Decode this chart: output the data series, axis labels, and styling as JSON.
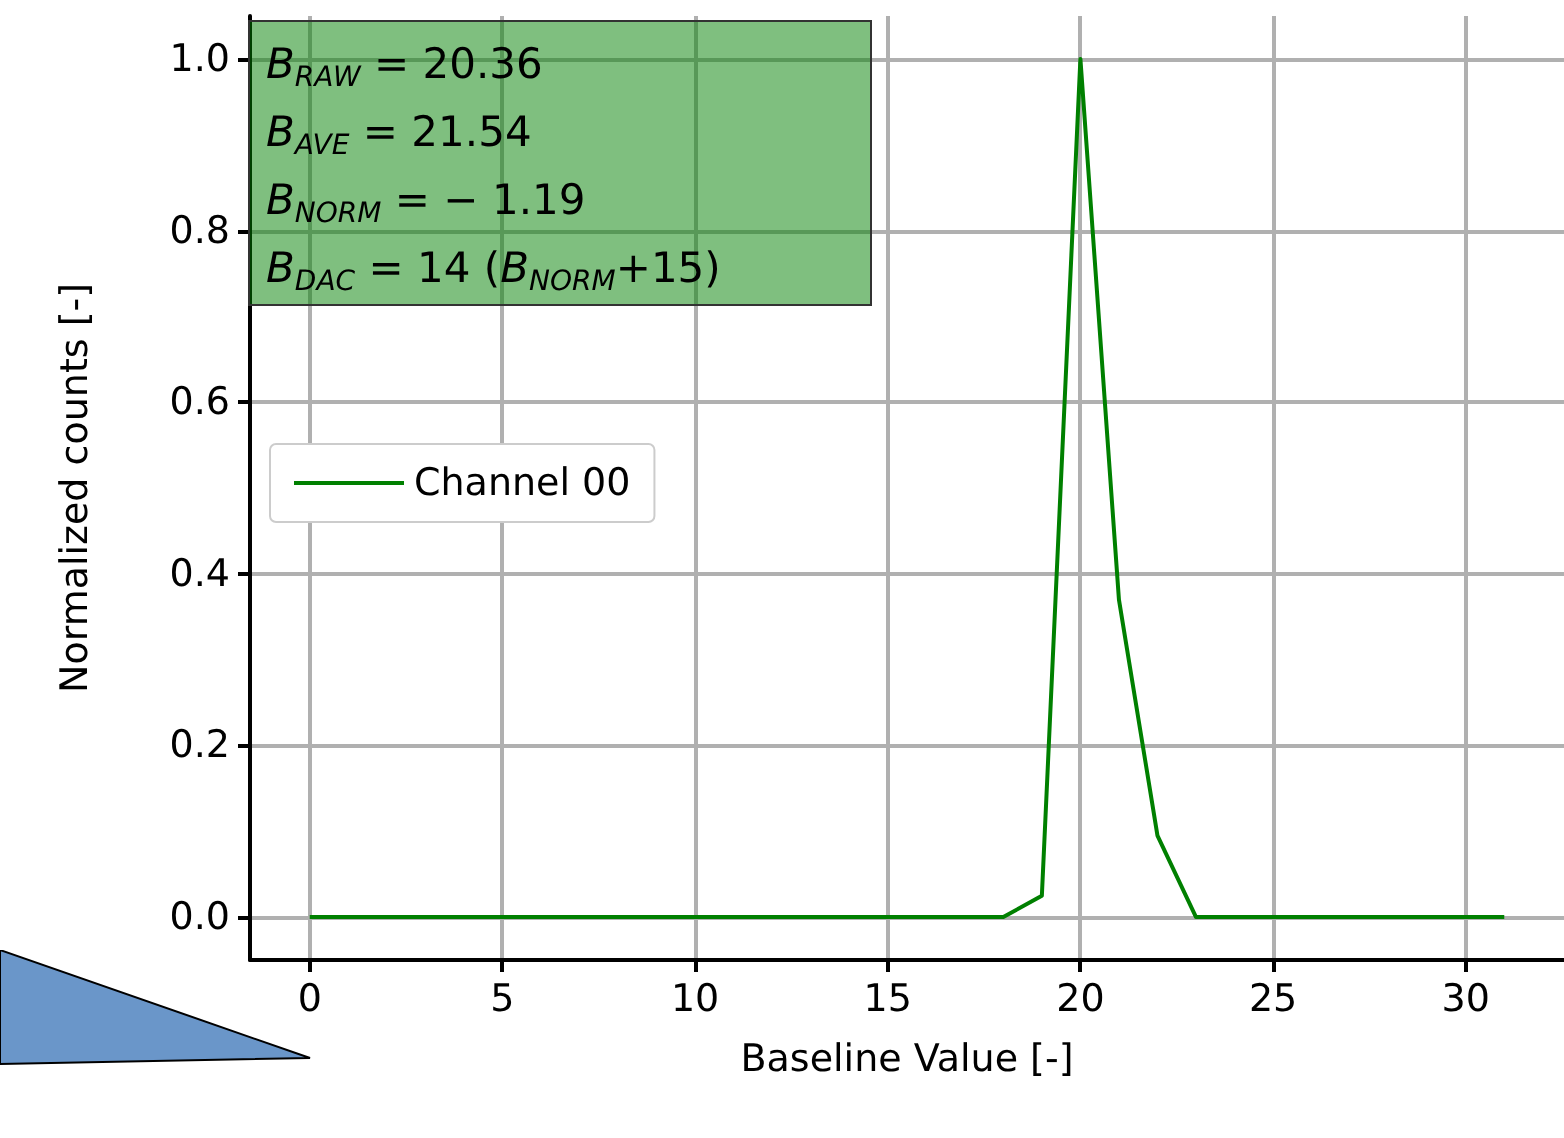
{
  "chart_data": {
    "type": "line",
    "xlabel": "Baseline Value [-]",
    "ylabel": "Normalized counts [-]",
    "x": [
      0,
      1,
      2,
      3,
      4,
      5,
      6,
      7,
      8,
      9,
      10,
      11,
      12,
      13,
      14,
      15,
      16,
      17,
      18,
      19,
      20,
      21,
      22,
      23,
      24,
      25,
      26,
      27,
      28,
      29,
      30,
      31
    ],
    "series": [
      {
        "name": "Channel 00",
        "color": "#008000",
        "values": [
          0,
          0,
          0,
          0,
          0,
          0,
          0,
          0,
          0,
          0,
          0,
          0,
          0,
          0,
          0,
          0,
          0,
          0,
          0,
          0.025,
          1.0,
          0.37,
          0.095,
          0,
          0,
          0,
          0,
          0,
          0,
          0,
          0,
          0
        ]
      }
    ],
    "xlim": [
      -1.55,
      32.55
    ],
    "xticks": [
      0,
      5,
      10,
      15,
      20,
      25,
      30
    ],
    "ylim": [
      -0.05,
      1.05
    ],
    "yticks": [
      {
        "value": 0,
        "label": "0.0"
      },
      0.2,
      0.4,
      0.6,
      0.8,
      {
        "value": 1,
        "label": "1.0"
      }
    ],
    "annotations": [
      "B$_{RAW}$ = 20.36",
      "B$_{AVE}$ = 21.54",
      "B$_{NORM}$ = − 1.19",
      "B$_{DAC}$ = 14 (B$_{NORM}$+15)"
    ],
    "grid": true,
    "legend": "center left",
    "marker": "none",
    "line_style": "solid"
  }
}
